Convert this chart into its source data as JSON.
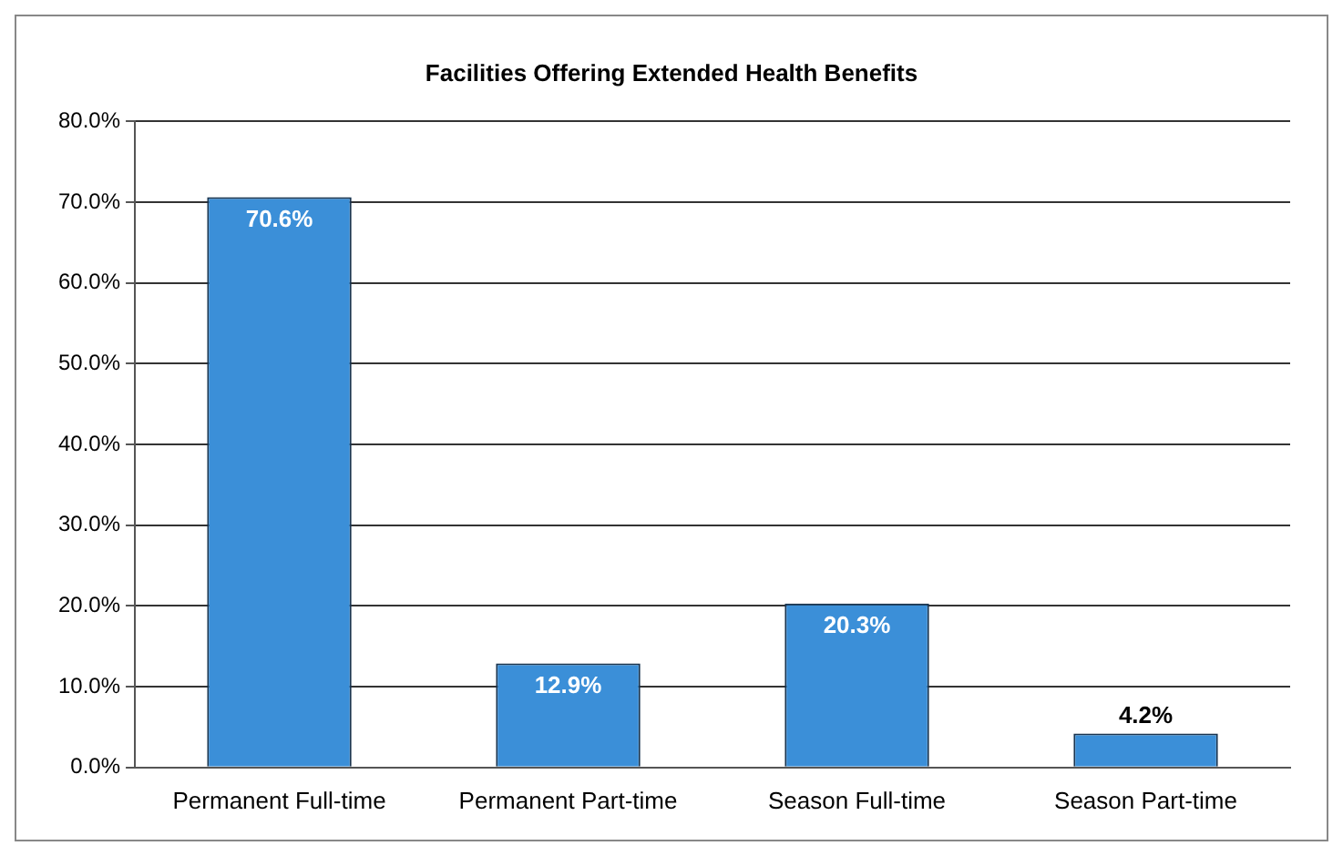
{
  "chart_data": {
    "type": "bar",
    "title": "Facilities Offering Extended Health Benefits",
    "categories": [
      "Permanent Full-time",
      "Permanent Part-time",
      "Season Full-time",
      "Season Part-time"
    ],
    "values": [
      70.6,
      12.9,
      20.3,
      4.2
    ],
    "value_labels": [
      "70.6%",
      "12.9%",
      "20.3%",
      "4.2%"
    ],
    "color": "#3b8fd8",
    "ylim": [
      0,
      80
    ],
    "yticks": [
      {
        "value": 0,
        "label": "0.0%"
      },
      {
        "value": 10,
        "label": "10.0%"
      },
      {
        "value": 20,
        "label": "20.0%"
      },
      {
        "value": 30,
        "label": "30.0%"
      },
      {
        "value": 40,
        "label": "40.0%"
      },
      {
        "value": 50,
        "label": "50.0%"
      },
      {
        "value": 60,
        "label": "60.0%"
      },
      {
        "value": 70,
        "label": "70.0%"
      },
      {
        "value": 80,
        "label": "80.0%"
      }
    ],
    "grid": "y",
    "legend": false
  }
}
